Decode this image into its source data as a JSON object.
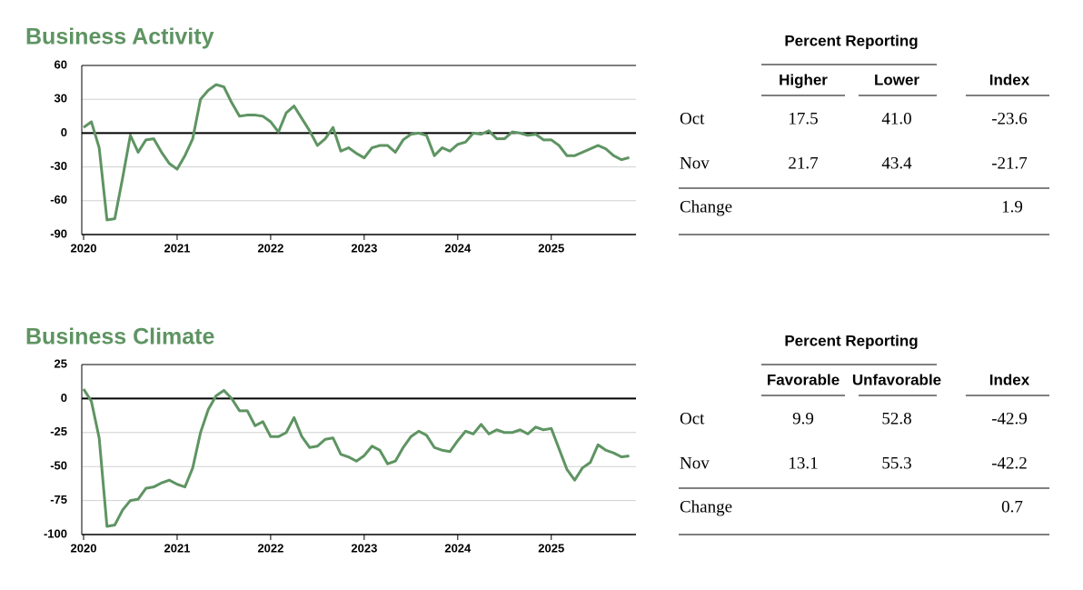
{
  "chart_data": [
    {
      "type": "line",
      "title": "Business Activity",
      "categories": [
        "2020",
        null,
        null,
        null,
        null,
        null,
        null,
        null,
        null,
        null,
        null,
        null,
        "2021",
        null,
        null,
        null,
        null,
        null,
        null,
        null,
        null,
        null,
        null,
        null,
        "2022",
        null,
        null,
        null,
        null,
        null,
        null,
        null,
        null,
        null,
        null,
        null,
        "2023",
        null,
        null,
        null,
        null,
        null,
        null,
        null,
        null,
        null,
        null,
        null,
        "2024",
        null,
        null,
        null,
        null,
        null,
        null,
        null,
        null,
        null,
        null,
        null,
        "2025",
        null,
        null,
        null,
        null,
        null,
        null,
        null,
        null,
        null,
        null
      ],
      "series": [
        {
          "color": "#5e9462",
          "values": [
            5,
            10,
            -13,
            -77,
            -76,
            -40,
            -2,
            -17,
            -6,
            -5,
            -17,
            -27,
            -32,
            -20,
            -5,
            30,
            38,
            43,
            41,
            27,
            15,
            16,
            16,
            15,
            10,
            1,
            18,
            24,
            13,
            2,
            -11,
            -5,
            5,
            -16,
            -13,
            -18,
            -22,
            -13,
            -11,
            -11,
            -17,
            -6,
            -1,
            0,
            -2,
            -20,
            -13,
            -16,
            -10,
            -8,
            0,
            -1,
            2,
            -5,
            -5,
            1,
            0,
            -2,
            -1,
            -6,
            -6,
            -11,
            -20,
            -20,
            -17,
            -14,
            -11,
            -14,
            -20,
            -23.6,
            -21.7
          ]
        }
      ],
      "ylim": [
        -90,
        60
      ],
      "yticks": [
        -90,
        -60,
        -30,
        0,
        30,
        60
      ],
      "grid": true
    },
    {
      "type": "line",
      "title": "Business Climate",
      "categories": [
        "2020",
        null,
        null,
        null,
        null,
        null,
        null,
        null,
        null,
        null,
        null,
        null,
        "2021",
        null,
        null,
        null,
        null,
        null,
        null,
        null,
        null,
        null,
        null,
        null,
        "2022",
        null,
        null,
        null,
        null,
        null,
        null,
        null,
        null,
        null,
        null,
        null,
        "2023",
        null,
        null,
        null,
        null,
        null,
        null,
        null,
        null,
        null,
        null,
        null,
        "2024",
        null,
        null,
        null,
        null,
        null,
        null,
        null,
        null,
        null,
        null,
        null,
        "2025",
        null,
        null,
        null,
        null,
        null,
        null,
        null,
        null,
        null,
        null
      ],
      "series": [
        {
          "color": "#5e9462",
          "values": [
            7,
            -2,
            -29,
            -94,
            -93,
            -82,
            -75,
            -74,
            -66,
            -65,
            -62,
            -60,
            -63,
            -65,
            -51,
            -25,
            -8,
            2,
            6,
            0,
            -9,
            -9,
            -20,
            -17,
            -28,
            -28,
            -25,
            -14,
            -28,
            -36,
            -35,
            -30,
            -29,
            -41,
            -43,
            -46,
            -42,
            -35,
            -38,
            -48,
            -46,
            -36,
            -28,
            -24,
            -27,
            -36,
            -38,
            -39,
            -31,
            -24,
            -26,
            -19,
            -26,
            -23,
            -25,
            -25,
            -23,
            -26,
            -21,
            -23,
            -22,
            -37,
            -52,
            -60,
            -51,
            -47,
            -34,
            -38,
            -40,
            -42.9,
            -42.2
          ]
        }
      ],
      "ylim": [
        -100,
        25
      ],
      "yticks": [
        -100,
        -75,
        -50,
        -25,
        0,
        25
      ],
      "grid": true
    }
  ],
  "tables": [
    {
      "group_header": "Percent Reporting",
      "columns": [
        "Higher",
        "Lower",
        "Index"
      ],
      "rows": [
        {
          "label": "Oct",
          "cells": [
            "17.5",
            "41.0",
            "-23.6"
          ]
        },
        {
          "label": "Nov",
          "cells": [
            "21.7",
            "43.4",
            "-21.7"
          ]
        }
      ],
      "change": {
        "label": "Change",
        "index": "1.9"
      }
    },
    {
      "group_header": "Percent Reporting",
      "columns": [
        "Favorable",
        "Unfavorable",
        "Index"
      ],
      "rows": [
        {
          "label": "Oct",
          "cells": [
            "9.9",
            "52.8",
            "-42.9"
          ]
        },
        {
          "label": "Nov",
          "cells": [
            "13.1",
            "55.3",
            "-42.2"
          ]
        }
      ],
      "change": {
        "label": "Change",
        "index": "0.7"
      }
    }
  ]
}
